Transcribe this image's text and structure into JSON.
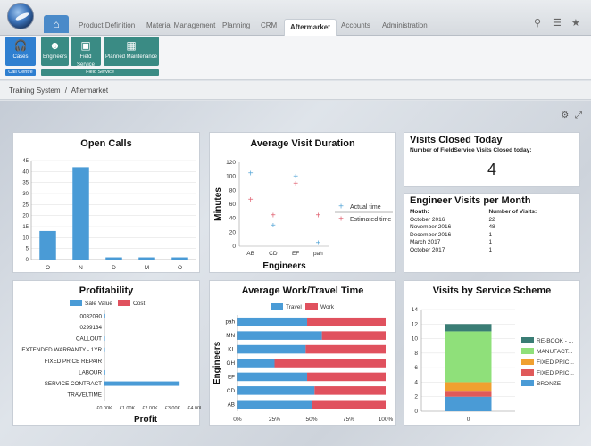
{
  "nav": {
    "tabs": [
      "Product Definition",
      "Material Management",
      "Planning",
      "CRM",
      "Aftermarket",
      "Accounts",
      "Administration"
    ],
    "active_tab": "Aftermarket"
  },
  "ribbon": {
    "buttons": [
      "Cases",
      "Engineers",
      "Field Service",
      "Planned Maintenance"
    ],
    "groups": [
      "Call Centre",
      "Field Service"
    ]
  },
  "breadcrumb": {
    "root": "Training System",
    "separator": "/",
    "current": "Aftermarket"
  },
  "colors": {
    "primary_blue": "#4a9bd6",
    "red": "#e0515e",
    "teal": "#3a8b84",
    "plus_blue": "#5aa8d8",
    "plus_red": "#e06070"
  },
  "open_calls": {
    "title": "Open Calls",
    "chart_data": {
      "type": "bar",
      "categories": [
        "O",
        "N",
        "D",
        "M",
        "O"
      ],
      "values": [
        13,
        42,
        1,
        1,
        1
      ],
      "ylim": [
        0,
        45
      ],
      "yticks": [
        0,
        5,
        10,
        15,
        20,
        25,
        30,
        35,
        40,
        45
      ]
    }
  },
  "avg_visit": {
    "title": "Average Visit Duration",
    "chart_data": {
      "type": "scatter",
      "x": [
        "AB",
        "CD",
        "EF",
        "pah"
      ],
      "xlabel": "Engineers",
      "ylabel": "Minutes",
      "ylim": [
        0,
        120
      ],
      "yticks": [
        0,
        20,
        40,
        60,
        80,
        100,
        120
      ],
      "series": [
        {
          "name": "Actual time",
          "values": [
            105,
            30,
            100,
            5
          ]
        },
        {
          "name": "Estimated time",
          "values": [
            67,
            45,
            90,
            45
          ]
        }
      ]
    }
  },
  "visits_closed": {
    "title": "Visits Closed Today",
    "label": "Number of FieldService Visits Closed today:",
    "value": "4"
  },
  "engineer_visits": {
    "title": "Engineer Visits per Month",
    "headers": [
      "Month:",
      "Number of Visits:"
    ],
    "rows": [
      [
        "October 2016",
        "22"
      ],
      [
        "November 2016",
        "48"
      ],
      [
        "December 2016",
        "1"
      ],
      [
        "March 2017",
        "1"
      ],
      [
        "October 2017",
        "1"
      ]
    ]
  },
  "profitability": {
    "title": "Profitability",
    "chart_data": {
      "type": "bar",
      "orientation": "horizontal",
      "categories": [
        "0032090",
        "0299134",
        "CALLOUT",
        "EXTENDED WARRANTY - 1YR",
        "FIXED PRICE REPAIR",
        "LABOUR",
        "SERVICE CONTRACT",
        "TRAVELTIME"
      ],
      "series": [
        {
          "name": "Sale Value",
          "values": [
            30,
            0,
            20,
            20,
            0,
            30,
            3300,
            0
          ]
        },
        {
          "name": "Cost",
          "values": [
            0,
            0,
            0,
            0,
            0,
            0,
            0,
            0
          ]
        }
      ],
      "xlabel": "Profit",
      "xticks": [
        "£0.00K",
        "£1.00K",
        "£2.00K",
        "£3.00K",
        "£4.00K"
      ],
      "xlim": [
        0,
        4000
      ]
    }
  },
  "work_travel": {
    "title": "Average Work/Travel Time",
    "chart_data": {
      "type": "bar",
      "orientation": "horizontal",
      "stacked": "percent",
      "categories": [
        "pah",
        "MN",
        "KL",
        "GH",
        "EF",
        "CD",
        "AB"
      ],
      "ylabel": "Engineers",
      "series": [
        {
          "name": "Travel",
          "values": [
            47,
            57,
            46,
            25,
            47,
            52,
            50
          ]
        },
        {
          "name": "Work",
          "values": [
            53,
            43,
            54,
            75,
            53,
            48,
            50
          ]
        }
      ],
      "xticks": [
        "0%",
        "25%",
        "50%",
        "75%",
        "100%"
      ]
    }
  },
  "service_scheme": {
    "title": "Visits by Service Scheme",
    "chart_data": {
      "type": "bar",
      "stacked": true,
      "categories": [
        "0"
      ],
      "ylim": [
        0,
        14
      ],
      "yticks": [
        0,
        2,
        4,
        6,
        8,
        10,
        12,
        14
      ],
      "series": [
        {
          "name": "BRONZE",
          "values": [
            2
          ],
          "color": "#4a9bd6"
        },
        {
          "name": "FIXED PRIC...",
          "values": [
            0.8
          ],
          "color": "#e05a5a"
        },
        {
          "name": "FIXED PRIC...",
          "values": [
            1.2
          ],
          "color": "#f0a030"
        },
        {
          "name": "MANUFACT...",
          "values": [
            7
          ],
          "color": "#8fe07a"
        },
        {
          "name": "RE-BOOK - ...",
          "values": [
            1
          ],
          "color": "#3a7d75"
        }
      ]
    }
  }
}
